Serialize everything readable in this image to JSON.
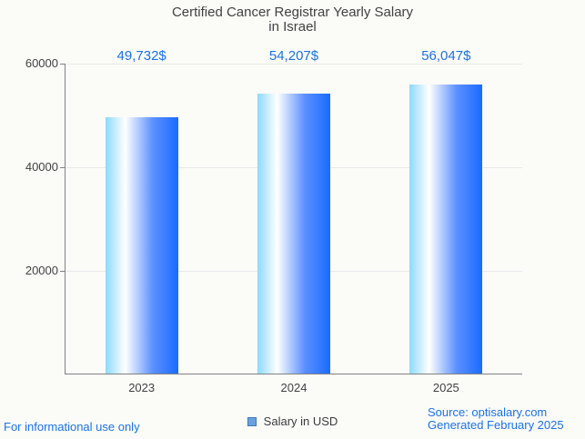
{
  "title": {
    "line1": "Certified Cancer Registrar Yearly Salary",
    "line2": "in Israel"
  },
  "legend": {
    "label": "Salary in USD"
  },
  "footer": {
    "disclaimer": "For informational use only",
    "source": "Source: optisalary.com",
    "generated": "Generated February 2025"
  },
  "colors": {
    "accent_blue": "#1a73e8",
    "background": "#fbfbf8",
    "grid": "#e9e9e9",
    "axis": "#828282",
    "text_dark": "#424242",
    "bar_gradient": [
      "#8dd9fc",
      "#ffffff",
      "#5b90ff",
      "#1a6bff"
    ],
    "legend_fill": "#68a1dd",
    "legend_border": "#3d7ab8"
  },
  "chart_data": {
    "type": "bar",
    "title": "Certified Cancer Registrar Yearly Salary in Israel",
    "categories": [
      "2023",
      "2024",
      "2025"
    ],
    "series": [
      {
        "name": "Salary in USD",
        "values": [
          49732,
          54207,
          56047
        ]
      }
    ],
    "bar_labels": [
      "49,732$",
      "54,207$",
      "56,047$"
    ],
    "xlabel": "",
    "ylabel": "",
    "ylim": [
      0,
      60000
    ],
    "yticks": [
      {
        "value": 20000,
        "label": "20000"
      },
      {
        "value": 40000,
        "label": "40000"
      },
      {
        "value": 60000,
        "label": "60000"
      }
    ],
    "grid": true,
    "legend_position": "bottom"
  }
}
